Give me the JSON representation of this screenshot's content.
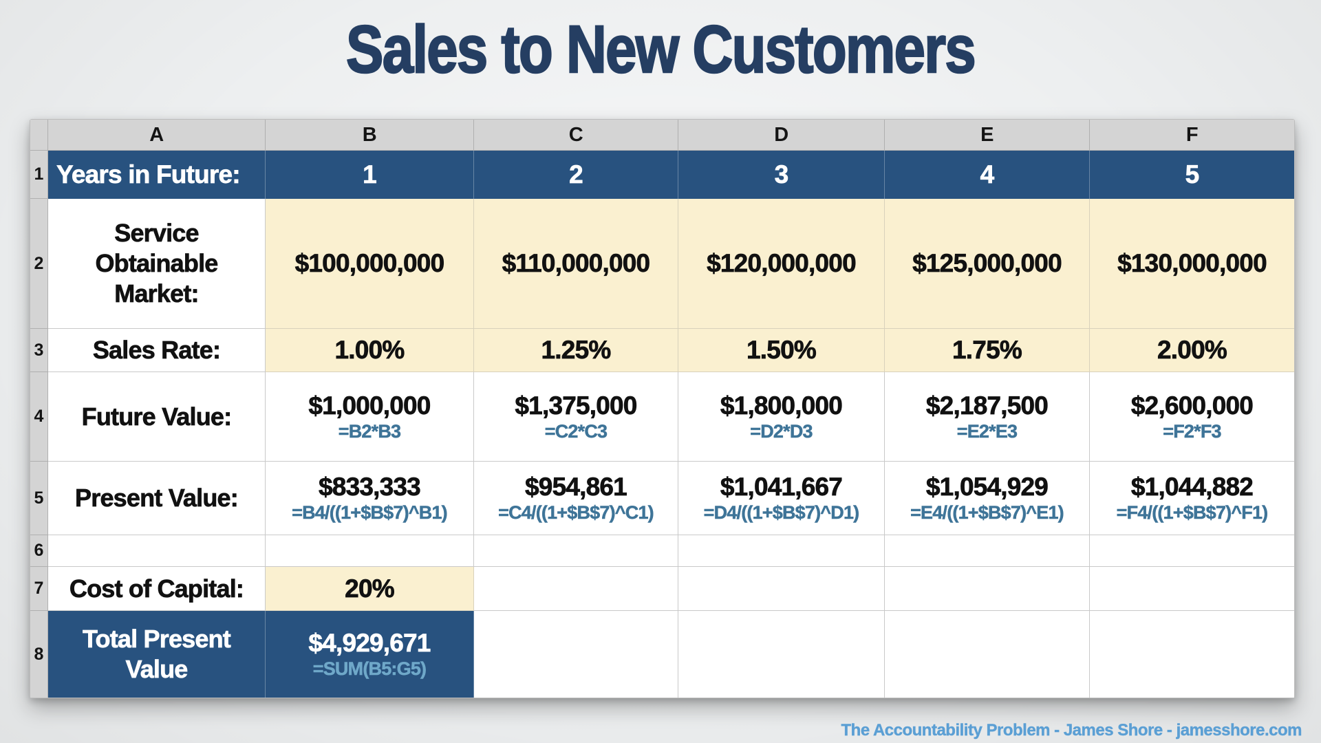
{
  "title": "Sales to New Customers",
  "footer": {
    "credit": "The Accountability Problem - James Shore - jamesshore.com"
  },
  "colors": {
    "title_navy": "#253E62",
    "header_blue": "#28527F",
    "highlight_cream": "#FAF0D0",
    "formula_teal": "#3E7498",
    "formula_light_blue": "#6FA8C9",
    "footer_blue": "#5B9FD4",
    "grid_header_gray": "#D4D4D4",
    "page_background": "#EDEFF0"
  },
  "spreadsheet": {
    "cols": [
      "A",
      "B",
      "C",
      "D",
      "E",
      "F"
    ],
    "rownums": [
      "1",
      "2",
      "3",
      "4",
      "5",
      "6",
      "7",
      "8"
    ],
    "years": {
      "label": "Years in Future:",
      "values": [
        "1",
        "2",
        "3",
        "4",
        "5"
      ]
    },
    "market": {
      "label": "Service Obtainable Market:",
      "values": [
        "$100,000,000",
        "$110,000,000",
        "$120,000,000",
        "$125,000,000",
        "$130,000,000"
      ]
    },
    "rate": {
      "label": "Sales Rate:",
      "values": [
        "1.00%",
        "1.25%",
        "1.50%",
        "1.75%",
        "2.00%"
      ]
    },
    "future": {
      "label": "Future Value:",
      "values": [
        "$1,000,000",
        "$1,375,000",
        "$1,800,000",
        "$2,187,500",
        "$2,600,000"
      ],
      "formulas": [
        "=B2*B3",
        "=C2*C3",
        "=D2*D3",
        "=E2*E3",
        "=F2*F3"
      ]
    },
    "present": {
      "label": "Present Value:",
      "values": [
        "$833,333",
        "$954,861",
        "$1,041,667",
        "$1,054,929",
        "$1,044,882"
      ],
      "formulas": [
        "=B4/((1+$B$7)^B1)",
        "=C4/((1+$B$7)^C1)",
        "=D4/((1+$B$7)^D1)",
        "=E4/((1+$B$7)^E1)",
        "=F4/((1+$B$7)^F1)"
      ]
    },
    "capital": {
      "label": "Cost of Capital:",
      "value": "20%"
    },
    "total": {
      "label": "Total Present Value",
      "value": "$4,929,671",
      "formula": "=SUM(B5:G5)"
    }
  }
}
